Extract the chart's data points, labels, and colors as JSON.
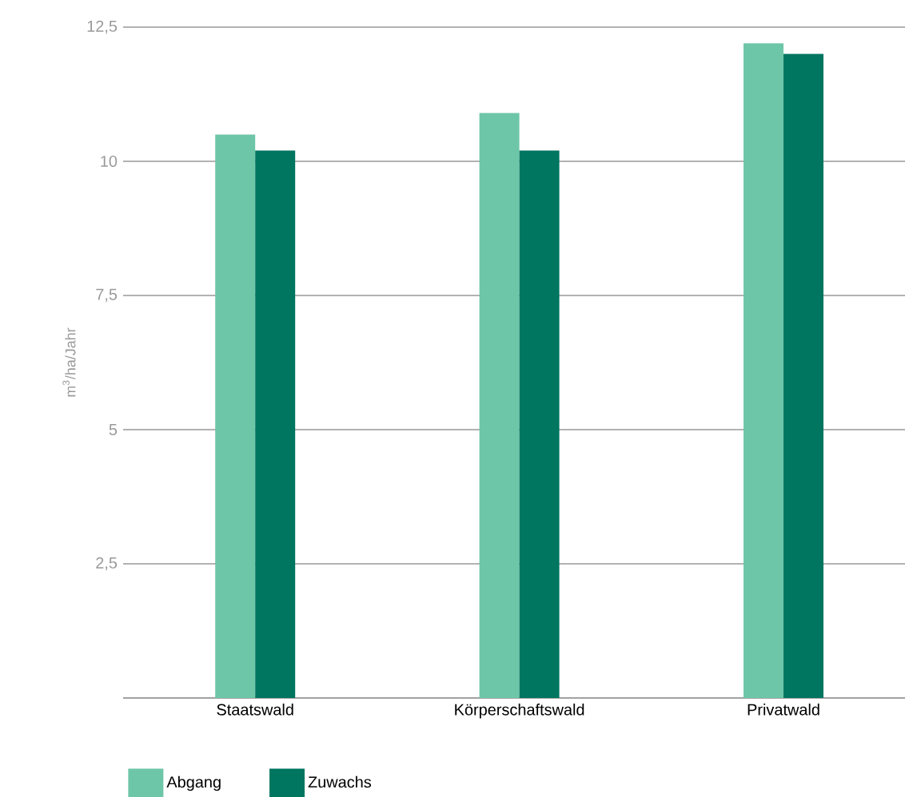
{
  "chart_data": {
    "type": "bar",
    "ylabel": "m$^{3}$/ha/Jahr",
    "categories": [
      "Staatswald",
      "Körperschaftswald",
      "Privatwald"
    ],
    "series": [
      {
        "name": "Abgang",
        "color": "#6ec6a8",
        "values": [
          10.5,
          10.9,
          12.2
        ]
      },
      {
        "name": "Zuwachs",
        "color": "#007560",
        "values": [
          10.2,
          10.2,
          12.0
        ]
      }
    ],
    "ylim": [
      0,
      12.5
    ],
    "yticks": [
      {
        "value": 0,
        "label": null
      },
      {
        "value": 2.5,
        "label": "2,5"
      },
      5,
      {
        "value": 7.5,
        "label": "7,5"
      },
      10,
      {
        "value": 12.5,
        "label": "12,5"
      }
    ],
    "grid": "y",
    "legend": "bottom left"
  }
}
